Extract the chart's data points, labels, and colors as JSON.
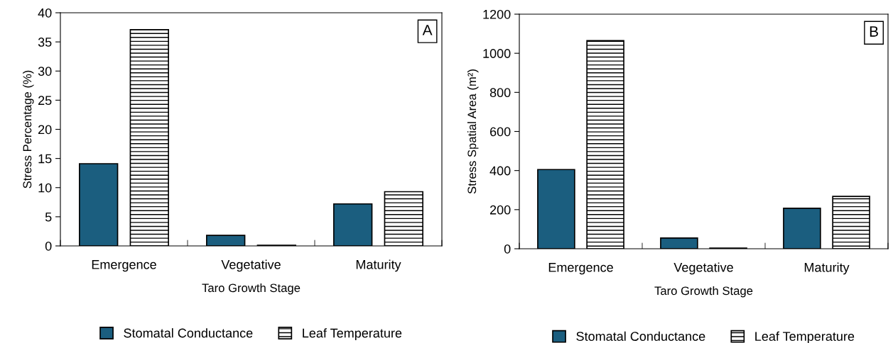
{
  "chart_data": [
    {
      "type": "bar",
      "xlabel": "Taro Growth Stage",
      "ylabel": "Stress Percentage (%)",
      "categories": [
        "Emergence",
        "Vegetative",
        "Maturity"
      ],
      "series": [
        {
          "name": "Stomatal Conductance",
          "color": "#1b5e7f",
          "values": [
            14.1,
            1.8,
            7.2
          ]
        },
        {
          "name": "Leaf Temperature",
          "color": "#000000",
          "values": [
            37.1,
            0.1,
            9.3
          ]
        }
      ],
      "ylim": [
        0,
        40
      ],
      "yticks": [
        0,
        5,
        10,
        15,
        20,
        25,
        30,
        35,
        40
      ],
      "grid": false,
      "legend": "bottom",
      "annotations": [
        "A"
      ]
    },
    {
      "type": "bar",
      "xlabel": "Taro Growth Stage",
      "ylabel": "Stress Spatial Area (m²)",
      "categories": [
        "Emergence",
        "Vegetative",
        "Maturity"
      ],
      "series": [
        {
          "name": "Stomatal Conductance",
          "color": "#1b5e7f",
          "values": [
            405,
            55,
            207
          ]
        },
        {
          "name": "Leaf Temperature",
          "color": "#000000",
          "values": [
            1065,
            3,
            268
          ]
        }
      ],
      "ylim": [
        0,
        1200
      ],
      "yticks": [
        0,
        200,
        400,
        600,
        800,
        1000,
        1200
      ],
      "grid": false,
      "legend": "bottom",
      "annotations": [
        "B"
      ]
    }
  ]
}
